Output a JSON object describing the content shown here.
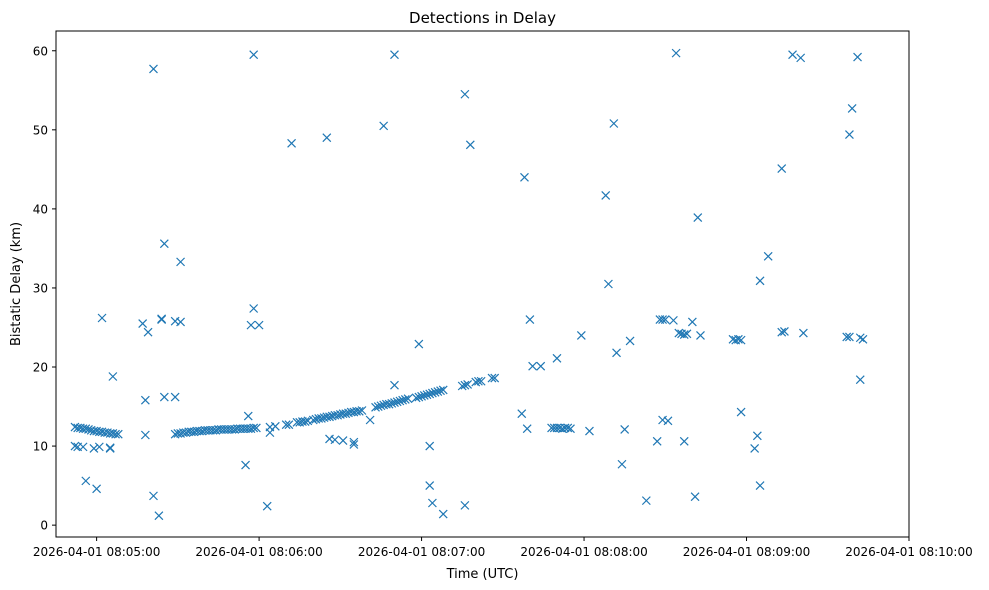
{
  "chart_data": {
    "type": "scatter",
    "title": "Detections in Delay",
    "xlabel": "Time (UTC)",
    "ylabel": "Bistatic Delay (km)",
    "x_format": "time",
    "xlim": [
      "2026-04-01 08:04:45",
      "2026-04-01 08:10:00"
    ],
    "ylim": [
      -1.5,
      62.5
    ],
    "x_ticks": [
      {
        "t": "2026-04-01 08:05:00",
        "label": "2026-04-01 08:05:00"
      },
      {
        "t": "2026-04-01 08:06:00",
        "label": "2026-04-01 08:06:00"
      },
      {
        "t": "2026-04-01 08:07:00",
        "label": "2026-04-01 08:07:00"
      },
      {
        "t": "2026-04-01 08:08:00",
        "label": "2026-04-01 08:08:00"
      },
      {
        "t": "2026-04-01 08:09:00",
        "label": "2026-04-01 08:09:00"
      },
      {
        "t": "2026-04-01 08:10:00",
        "label": "2026-04-01 08:10:00"
      }
    ],
    "y_ticks": [
      0,
      10,
      20,
      30,
      40,
      50,
      60
    ],
    "grid": false,
    "marker": "x",
    "color": "#1f77b4",
    "series": [
      {
        "points": [
          [
            "08:04:52",
            12.4
          ],
          [
            "08:04:53",
            12.3
          ],
          [
            "08:04:54",
            12.3
          ],
          [
            "08:04:55",
            12.2
          ],
          [
            "08:04:56",
            12.2
          ],
          [
            "08:04:57",
            12.1
          ],
          [
            "08:04:58",
            12.0
          ],
          [
            "08:04:59",
            11.9
          ],
          [
            "08:05:00",
            11.9
          ],
          [
            "08:05:01",
            11.8
          ],
          [
            "08:05:02",
            11.8
          ],
          [
            "08:05:03",
            11.7
          ],
          [
            "08:05:04",
            11.7
          ],
          [
            "08:05:05",
            11.6
          ],
          [
            "08:05:06",
            11.6
          ],
          [
            "08:05:07",
            11.5
          ],
          [
            "08:05:08",
            11.5
          ],
          [
            "08:04:52",
            10.0
          ],
          [
            "08:04:53",
            9.9
          ],
          [
            "08:04:55",
            9.9
          ],
          [
            "08:04:59",
            9.7
          ],
          [
            "08:05:01",
            9.9
          ],
          [
            "08:05:05",
            9.8
          ],
          [
            "08:05:05",
            9.7
          ],
          [
            "08:04:56",
            5.6
          ],
          [
            "08:05:00",
            4.6
          ],
          [
            "08:05:02",
            26.2
          ],
          [
            "08:05:06",
            18.8
          ],
          [
            "08:05:17",
            25.5
          ],
          [
            "08:05:18",
            15.8
          ],
          [
            "08:05:18",
            11.4
          ],
          [
            "08:05:19",
            24.4
          ],
          [
            "08:05:21",
            57.7
          ],
          [
            "08:05:21",
            3.7
          ],
          [
            "08:05:23",
            1.2
          ],
          [
            "08:05:24",
            26.1
          ],
          [
            "08:05:24",
            26.0
          ],
          [
            "08:05:25",
            16.2
          ],
          [
            "08:05:25",
            35.6
          ],
          [
            "08:05:29",
            16.2
          ],
          [
            "08:05:29",
            25.8
          ],
          [
            "08:05:31",
            25.7
          ],
          [
            "08:05:31",
            33.3
          ],
          [
            "08:05:29",
            11.5
          ],
          [
            "08:05:30",
            11.6
          ],
          [
            "08:05:31",
            11.6
          ],
          [
            "08:05:32",
            11.7
          ],
          [
            "08:05:33",
            11.7
          ],
          [
            "08:05:34",
            11.8
          ],
          [
            "08:05:35",
            11.8
          ],
          [
            "08:05:36",
            11.8
          ],
          [
            "08:05:37",
            11.9
          ],
          [
            "08:05:38",
            11.9
          ],
          [
            "08:05:39",
            11.9
          ],
          [
            "08:05:40",
            12.0
          ],
          [
            "08:05:41",
            12.0
          ],
          [
            "08:05:42",
            12.0
          ],
          [
            "08:05:43",
            12.0
          ],
          [
            "08:05:44",
            12.0
          ],
          [
            "08:05:45",
            12.1
          ],
          [
            "08:05:46",
            12.1
          ],
          [
            "08:05:47",
            12.1
          ],
          [
            "08:05:48",
            12.1
          ],
          [
            "08:05:49",
            12.1
          ],
          [
            "08:05:50",
            12.1
          ],
          [
            "08:05:51",
            12.1
          ],
          [
            "08:05:52",
            12.2
          ],
          [
            "08:05:53",
            12.2
          ],
          [
            "08:05:54",
            12.2
          ],
          [
            "08:05:55",
            12.2
          ],
          [
            "08:05:56",
            12.2
          ],
          [
            "08:05:57",
            12.2
          ],
          [
            "08:05:58",
            12.3
          ],
          [
            "08:05:59",
            12.3
          ],
          [
            "08:05:55",
            7.6
          ],
          [
            "08:05:56",
            13.8
          ],
          [
            "08:05:57",
            25.3
          ],
          [
            "08:05:58",
            27.4
          ],
          [
            "08:05:58",
            59.5
          ],
          [
            "08:06:00",
            25.3
          ],
          [
            "08:06:03",
            2.4
          ],
          [
            "08:06:04",
            11.7
          ],
          [
            "08:06:04",
            12.4
          ],
          [
            "08:06:06",
            12.5
          ],
          [
            "08:06:10",
            12.7
          ],
          [
            "08:06:11",
            12.7
          ],
          [
            "08:06:12",
            48.3
          ],
          [
            "08:06:14",
            13.0
          ],
          [
            "08:06:15",
            13.0
          ],
          [
            "08:06:16",
            13.1
          ],
          [
            "08:06:17",
            13.1
          ],
          [
            "08:06:18",
            13.2
          ],
          [
            "08:06:20",
            13.3
          ],
          [
            "08:06:21",
            13.4
          ],
          [
            "08:06:22",
            13.5
          ],
          [
            "08:06:23",
            13.5
          ],
          [
            "08:06:24",
            13.6
          ],
          [
            "08:06:25",
            13.7
          ],
          [
            "08:06:25",
            49.0
          ],
          [
            "08:06:26",
            13.7
          ],
          [
            "08:06:26",
            10.9
          ],
          [
            "08:06:27",
            13.8
          ],
          [
            "08:06:28",
            13.9
          ],
          [
            "08:06:28",
            10.8
          ],
          [
            "08:06:29",
            13.9
          ],
          [
            "08:06:30",
            14.0
          ],
          [
            "08:06:31",
            14.1
          ],
          [
            "08:06:31",
            10.7
          ],
          [
            "08:06:32",
            14.1
          ],
          [
            "08:06:33",
            14.2
          ],
          [
            "08:06:34",
            14.3
          ],
          [
            "08:06:35",
            14.3
          ],
          [
            "08:06:35",
            10.5
          ],
          [
            "08:06:35",
            10.2
          ],
          [
            "08:06:36",
            14.4
          ],
          [
            "08:06:37",
            14.4
          ],
          [
            "08:06:38",
            14.5
          ],
          [
            "08:06:41",
            13.3
          ],
          [
            "08:06:43",
            14.9
          ],
          [
            "08:06:44",
            15.0
          ],
          [
            "08:06:45",
            15.1
          ],
          [
            "08:06:46",
            50.5
          ],
          [
            "08:06:46",
            15.2
          ],
          [
            "08:06:47",
            15.3
          ],
          [
            "08:06:48",
            15.3
          ],
          [
            "08:06:49",
            15.4
          ],
          [
            "08:06:50",
            15.5
          ],
          [
            "08:06:50",
            17.7
          ],
          [
            "08:06:50",
            59.5
          ],
          [
            "08:06:51",
            15.6
          ],
          [
            "08:06:52",
            15.7
          ],
          [
            "08:06:53",
            15.8
          ],
          [
            "08:06:54",
            15.9
          ],
          [
            "08:06:55",
            16.0
          ],
          [
            "08:06:58",
            16.1
          ],
          [
            "08:06:59",
            16.2
          ],
          [
            "08:07:00",
            16.3
          ],
          [
            "08:07:01",
            16.4
          ],
          [
            "08:07:02",
            16.5
          ],
          [
            "08:07:03",
            16.6
          ],
          [
            "08:07:04",
            16.7
          ],
          [
            "08:07:05",
            16.8
          ],
          [
            "08:07:06",
            16.9
          ],
          [
            "08:07:07",
            17.0
          ],
          [
            "08:07:08",
            17.1
          ],
          [
            "08:06:59",
            22.9
          ],
          [
            "08:07:03",
            10.0
          ],
          [
            "08:07:03",
            5.0
          ],
          [
            "08:07:04",
            2.8
          ],
          [
            "08:07:08",
            1.4
          ],
          [
            "08:07:16",
            2.5
          ],
          [
            "08:07:15",
            17.6
          ],
          [
            "08:07:16",
            17.7
          ],
          [
            "08:07:17",
            17.8
          ],
          [
            "08:07:20",
            18.1
          ],
          [
            "08:07:21",
            18.2
          ],
          [
            "08:07:22",
            18.2
          ],
          [
            "08:07:26",
            18.6
          ],
          [
            "08:07:27",
            18.6
          ],
          [
            "08:07:16",
            54.5
          ],
          [
            "08:07:18",
            48.1
          ],
          [
            "08:07:37",
            14.1
          ],
          [
            "08:07:38",
            44.0
          ],
          [
            "08:07:39",
            12.2
          ],
          [
            "08:07:41",
            20.1
          ],
          [
            "08:07:44",
            20.1
          ],
          [
            "08:07:40",
            26.0
          ],
          [
            "08:07:48",
            12.3
          ],
          [
            "08:07:49",
            12.3
          ],
          [
            "08:07:50",
            12.3
          ],
          [
            "08:07:51",
            12.3
          ],
          [
            "08:07:52",
            12.2
          ],
          [
            "08:07:53",
            12.3
          ],
          [
            "08:07:54",
            12.3
          ],
          [
            "08:07:55",
            12.2
          ],
          [
            "08:07:50",
            21.1
          ],
          [
            "08:07:59",
            24.0
          ],
          [
            "08:08:02",
            11.9
          ],
          [
            "08:08:08",
            41.7
          ],
          [
            "08:08:09",
            30.5
          ],
          [
            "08:08:11",
            50.8
          ],
          [
            "08:08:12",
            21.8
          ],
          [
            "08:08:14",
            7.7
          ],
          [
            "08:08:15",
            12.1
          ],
          [
            "08:08:17",
            23.3
          ],
          [
            "08:08:23",
            3.1
          ],
          [
            "08:08:27",
            10.6
          ],
          [
            "08:08:28",
            26.0
          ],
          [
            "08:08:29",
            26.0
          ],
          [
            "08:08:30",
            26.0
          ],
          [
            "08:08:29",
            13.3
          ],
          [
            "08:08:31",
            13.2
          ],
          [
            "08:08:33",
            25.9
          ],
          [
            "08:08:34",
            59.7
          ],
          [
            "08:08:35",
            24.3
          ],
          [
            "08:08:36",
            24.2
          ],
          [
            "08:08:37",
            24.1
          ],
          [
            "08:08:38",
            24.2
          ],
          [
            "08:08:37",
            10.6
          ],
          [
            "08:08:40",
            25.7
          ],
          [
            "08:08:41",
            3.6
          ],
          [
            "08:08:42",
            38.9
          ],
          [
            "08:08:43",
            24.0
          ],
          [
            "08:08:55",
            23.5
          ],
          [
            "08:08:56",
            23.4
          ],
          [
            "08:08:57",
            23.5
          ],
          [
            "08:08:58",
            23.4
          ],
          [
            "08:08:58",
            14.3
          ],
          [
            "08:09:03",
            9.7
          ],
          [
            "08:09:04",
            11.3
          ],
          [
            "08:09:05",
            5.0
          ],
          [
            "08:09:05",
            30.9
          ],
          [
            "08:09:08",
            34.0
          ],
          [
            "08:09:13",
            24.4
          ],
          [
            "08:09:14",
            24.5
          ],
          [
            "08:09:13",
            45.1
          ],
          [
            "08:09:17",
            59.5
          ],
          [
            "08:09:20",
            59.1
          ],
          [
            "08:09:21",
            24.3
          ],
          [
            "08:09:37",
            23.8
          ],
          [
            "08:09:38",
            23.8
          ],
          [
            "08:09:38",
            49.4
          ],
          [
            "08:09:39",
            52.7
          ],
          [
            "08:09:41",
            59.2
          ],
          [
            "08:09:42",
            23.7
          ],
          [
            "08:09:43",
            23.5
          ],
          [
            "08:09:42",
            18.4
          ]
        ]
      }
    ]
  }
}
